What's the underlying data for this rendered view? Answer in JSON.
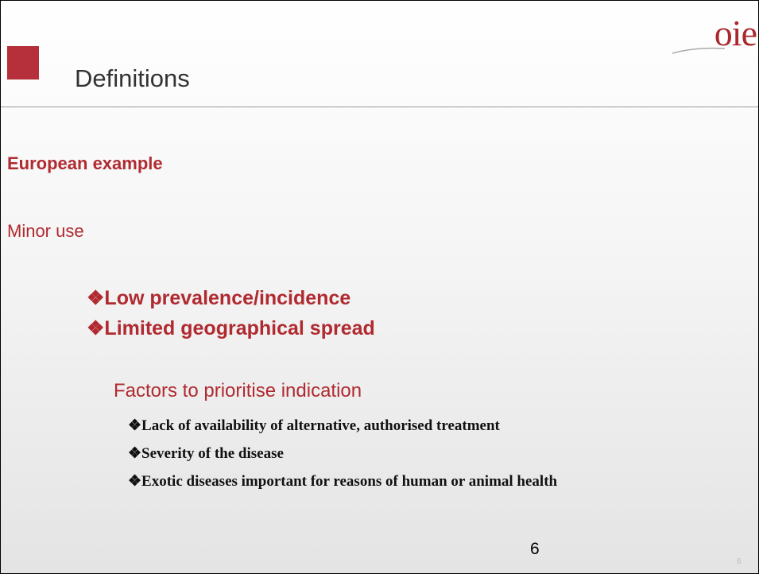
{
  "header": {
    "logo": "oie",
    "title": "Definitions"
  },
  "body": {
    "heading": "European example",
    "subheading": "Minor use",
    "criteria": [
      "Low prevalence/incidence",
      "Limited geographical spread"
    ],
    "factors_title": "Factors to prioritise indication",
    "factors": [
      "Lack of availability of alternative, authorised treatment",
      "Severity of the disease",
      "Exotic diseases important for reasons of human or animal health"
    ]
  },
  "footer": {
    "page_number": "6",
    "slide_number": "6"
  }
}
